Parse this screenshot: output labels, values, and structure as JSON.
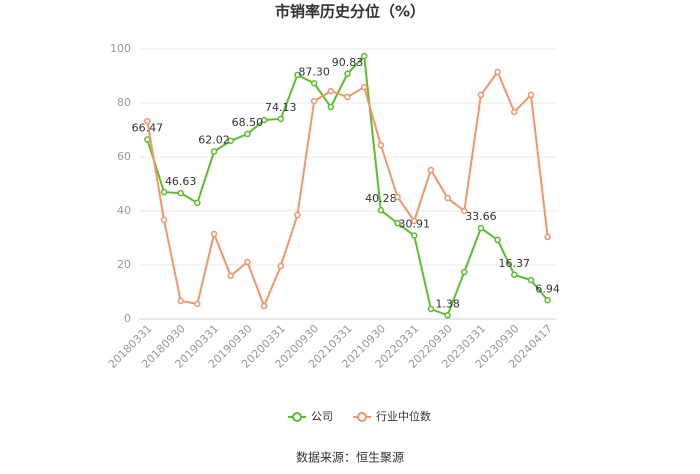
{
  "chart_data": {
    "type": "line",
    "title": "市销率历史分位（%）",
    "categories": [
      "20180331",
      null,
      "20180930",
      null,
      "20190331",
      null,
      "20190930",
      null,
      "20200331",
      null,
      "20200930",
      null,
      "20210331",
      null,
      "20210930",
      null,
      "20220331",
      null,
      "20220930",
      null,
      "20230331",
      null,
      "20230930",
      null,
      "20240417"
    ],
    "series": [
      {
        "name": "公司",
        "color": "#5cbf2a",
        "values": [
          66.47,
          47,
          46.63,
          43,
          62.02,
          66,
          68.5,
          73.7,
          74.13,
          90.4,
          87.3,
          78.5,
          90.83,
          97.4,
          40.28,
          35.5,
          30.91,
          3.7,
          1.38,
          17.4,
          33.66,
          29.3,
          16.37,
          14.4,
          6.94
        ],
        "value_labels": [
          "66.47",
          null,
          "46.63",
          null,
          "62.02",
          null,
          "68.50",
          null,
          "74.13",
          null,
          "87.30",
          null,
          "90.83",
          null,
          "40.28",
          null,
          "30.91",
          null,
          "1.38",
          null,
          "33.66",
          null,
          "16.37",
          null,
          "6.94"
        ]
      },
      {
        "name": "行业中位数",
        "color": "#f4956b",
        "values": [
          73.3,
          36.7,
          6.7,
          5.6,
          31.5,
          16,
          21.1,
          4.8,
          19.6,
          38.5,
          80.7,
          84.4,
          82.2,
          85.9,
          64.4,
          45.2,
          36.3,
          55.2,
          44.8,
          40,
          83,
          91.5,
          76.7,
          83,
          30.4
        ]
      }
    ],
    "ylim": [
      0,
      100
    ],
    "yticks": [
      0,
      20,
      40,
      60,
      80,
      100
    ],
    "grid": true,
    "legend": "bottom",
    "source": "数据来源：恒生聚源"
  }
}
